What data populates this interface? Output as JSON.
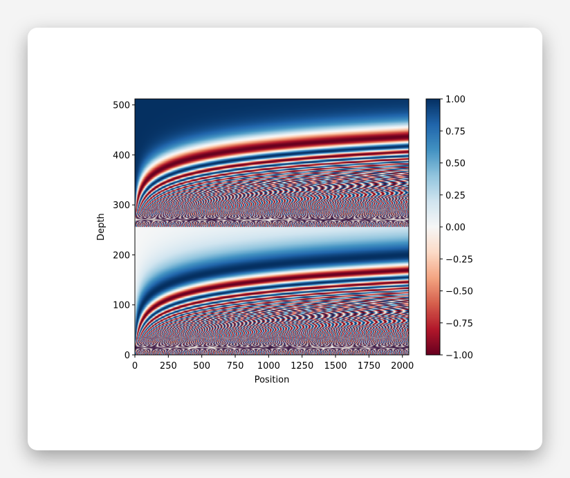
{
  "chart_data": {
    "type": "heatmap",
    "title": "",
    "xlabel": "Position",
    "ylabel": "Depth",
    "xlim": [
      0,
      2048
    ],
    "ylim": [
      0,
      512
    ],
    "x_ticks": [
      "0",
      "250",
      "500",
      "750",
      "1000",
      "1250",
      "1500",
      "1750",
      "2000"
    ],
    "x_tick_values": [
      0,
      250,
      500,
      750,
      1000,
      1250,
      1500,
      1750,
      2000
    ],
    "y_ticks": [
      "0",
      "100",
      "200",
      "300",
      "400",
      "500"
    ],
    "y_tick_values": [
      0,
      100,
      200,
      300,
      400,
      500
    ],
    "value_range": [
      -1.0,
      1.0
    ],
    "colormap": "RdBu",
    "colormap_stops": [
      "#67001f",
      "#b2182b",
      "#d6604d",
      "#f4a582",
      "#fddbc7",
      "#f7f7f7",
      "#d1e5f0",
      "#92c5de",
      "#4393c3",
      "#2166ac",
      "#053061"
    ],
    "function": "sinusoidal positional encoding: depth 0-255 = sin(pos / 10000^(2d/512)), depth 256-511 = cos(pos / 10000^(2(d-256)/512))",
    "colorbar": {
      "ticks": [
        "1.00",
        "0.75",
        "0.50",
        "0.25",
        "0.00",
        "−0.25",
        "−0.50",
        "−0.75",
        "−1.00"
      ],
      "tick_values": [
        1.0,
        0.75,
        0.5,
        0.25,
        0.0,
        -0.25,
        -0.5,
        -0.75,
        -1.0
      ]
    }
  }
}
